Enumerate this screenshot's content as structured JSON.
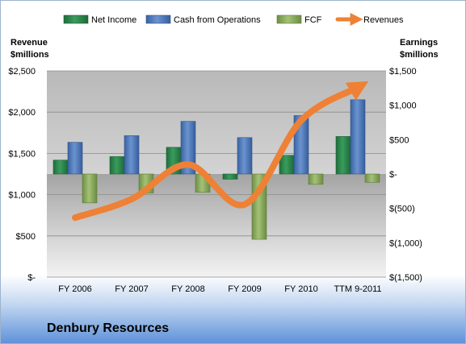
{
  "company_name": "Denbury Resources",
  "left_axis_title": [
    "Revenue",
    "$millions"
  ],
  "right_axis_title": [
    "Earnings",
    "$millions"
  ],
  "colors": {
    "net_income": "#2e8a4f",
    "cash_from_operations": "#4f78b5",
    "fcf": "#8fae5f",
    "revenues": "#ee8135"
  },
  "chart_data": {
    "type": "bar",
    "categories": [
      "FY 2006",
      "FY 2007",
      "FY 2008",
      "FY 2009",
      "FY 2010",
      "TTM 9-2011"
    ],
    "series": [
      {
        "name": "Net Income",
        "type": "bar",
        "axis": "right",
        "values": [
          202,
          253,
          388,
          -75,
          272,
          546
        ]
      },
      {
        "name": "Cash from Operations",
        "type": "bar",
        "axis": "right",
        "values": [
          461,
          558,
          766,
          530,
          850,
          1080
        ]
      },
      {
        "name": "FCF",
        "type": "bar",
        "axis": "right",
        "values": [
          -420,
          -276,
          -265,
          -950,
          -150,
          -120
        ]
      },
      {
        "name": "Revenues",
        "type": "line",
        "axis": "left",
        "values": [
          721,
          946,
          1365,
          882,
          1900,
          2300
        ]
      }
    ],
    "left_axis": {
      "range": [
        0,
        2500
      ],
      "ticks": [
        "$-",
        "$500",
        "$1,000",
        "$1,500",
        "$2,000",
        "$2,500"
      ]
    },
    "right_axis": {
      "range": [
        -1500,
        1500
      ],
      "ticks": [
        "$(1,500)",
        "$(1,000)",
        "$(500)",
        "$-",
        "$500",
        "$1,000",
        "$1,500"
      ]
    },
    "legend_position": "top",
    "grid": true
  }
}
